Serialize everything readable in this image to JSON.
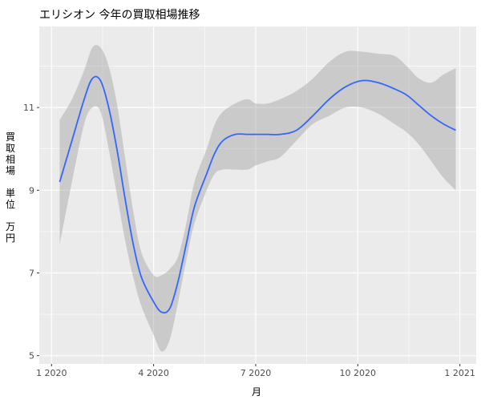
{
  "chart_data": {
    "type": "line",
    "title": "エリシオン 今年の買取相場推移",
    "xlabel": "月",
    "ylabel": [
      "買",
      "取",
      "相",
      "場",
      "",
      "単",
      "位",
      "",
      "万",
      "円"
    ],
    "x_ticks": [
      {
        "value": 2020.0,
        "label": "1 2020"
      },
      {
        "value": 2020.25,
        "label": "4 2020"
      },
      {
        "value": 2020.5,
        "label": "7 2020"
      },
      {
        "value": 2020.75,
        "label": "10 2020"
      },
      {
        "value": 2021.0,
        "label": "1 2021"
      }
    ],
    "y_ticks": [
      5,
      7,
      9,
      11
    ],
    "xlim": [
      2019.97,
      2021.04
    ],
    "ylim": [
      4.8,
      12.96
    ],
    "grid": true,
    "background": "#EBEBEB",
    "grid_color": "#FFFFFF",
    "line_color": "#3366FF",
    "band_color": "#999999",
    "band_opacity": 0.4,
    "series": [
      {
        "x": [
          2020.02,
          2020.05,
          2020.08,
          2020.1,
          2020.12,
          2020.14,
          2020.16,
          2020.18,
          2020.2,
          2020.22,
          2020.25,
          2020.27,
          2020.29,
          2020.31,
          2020.33,
          2020.35,
          2020.38,
          2020.4,
          2020.42,
          2020.45,
          2020.48,
          2020.5,
          2020.53,
          2020.56,
          2020.6,
          2020.64,
          2020.68,
          2020.72,
          2020.76,
          2020.8,
          2020.84,
          2020.87,
          2020.9,
          2020.93,
          2020.96,
          2020.99
        ],
        "y": [
          9.2,
          10.2,
          11.2,
          11.7,
          11.65,
          11.0,
          10.0,
          8.8,
          7.7,
          6.9,
          6.3,
          6.05,
          6.15,
          6.8,
          7.7,
          8.6,
          9.4,
          9.9,
          10.2,
          10.35,
          10.35,
          10.35,
          10.35,
          10.35,
          10.45,
          10.8,
          11.2,
          11.5,
          11.65,
          11.6,
          11.45,
          11.3,
          11.05,
          10.8,
          10.6,
          10.45
        ],
        "lower": [
          7.7,
          9.2,
          10.6,
          11.0,
          10.9,
          10.0,
          8.9,
          7.8,
          6.9,
          6.2,
          5.5,
          5.1,
          5.4,
          6.3,
          7.3,
          8.2,
          9.0,
          9.4,
          9.5,
          9.5,
          9.5,
          9.6,
          9.7,
          9.8,
          10.2,
          10.6,
          10.8,
          11.0,
          11.0,
          10.85,
          10.6,
          10.4,
          10.1,
          9.7,
          9.3,
          9.0
        ],
        "upper": [
          10.7,
          11.2,
          11.9,
          12.45,
          12.45,
          12.0,
          11.1,
          9.8,
          8.5,
          7.5,
          6.95,
          6.95,
          7.1,
          7.4,
          8.2,
          9.2,
          10.0,
          10.6,
          10.9,
          11.1,
          11.2,
          11.1,
          11.1,
          11.2,
          11.4,
          11.7,
          12.1,
          12.35,
          12.35,
          12.3,
          12.25,
          12.0,
          11.7,
          11.6,
          11.8,
          11.95
        ]
      }
    ]
  }
}
